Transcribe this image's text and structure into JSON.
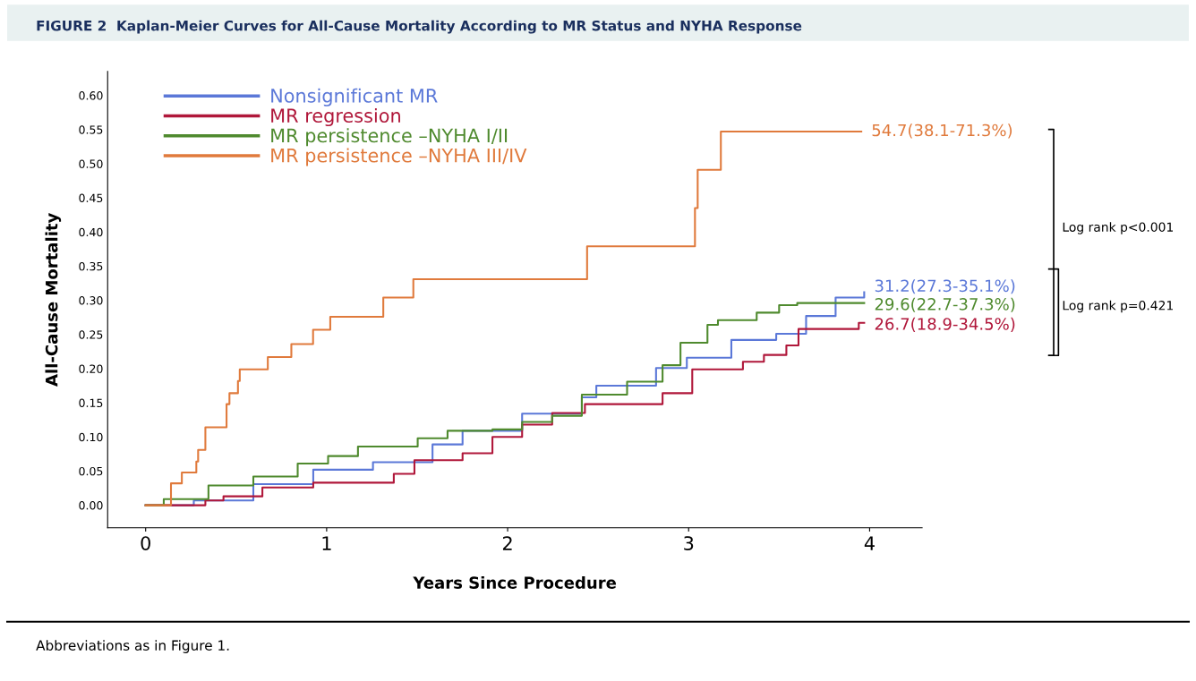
{
  "chart_data": {
    "type": "step",
    "title": "FIGURE 2  Kaplan-Meier Curves for All-Cause Mortality According to MR Status and NYHA Response",
    "xlabel": "Years Since Procedure",
    "ylabel": "All-Cause Mortality",
    "xlim": [
      -0.21,
      4.29
    ],
    "xticks": [
      0,
      1,
      2,
      3,
      4
    ],
    "ylim": [
      -0.033,
      0.635
    ],
    "yticks": [
      {
        "value": 0,
        "label": "0.00"
      },
      {
        "value": 0.05,
        "label": "0.05"
      },
      {
        "value": 0.1,
        "label": "0.10"
      },
      {
        "value": 0.15,
        "label": "0.15"
      },
      {
        "value": 0.2,
        "label": "0.20"
      },
      {
        "value": 0.25,
        "label": "0.25"
      },
      {
        "value": 0.3,
        "label": "0.30"
      },
      {
        "value": 0.35,
        "label": "0.35"
      },
      {
        "value": 0.4,
        "label": "0.40"
      },
      {
        "value": 0.45,
        "label": "0.45"
      },
      {
        "value": 0.5,
        "label": "0.50"
      },
      {
        "value": 0.55,
        "label": "0.55"
      },
      {
        "value": 0.6,
        "label": "0.60"
      }
    ],
    "grid": false,
    "legend": "top left",
    "marker": "none",
    "line_style": "solid",
    "series": [
      {
        "name": "Nonsignificant MR",
        "color": "#5b78d8",
        "x": [
          0,
          0.266,
          0.595,
          0.926,
          1.256,
          1.585,
          1.751,
          2.08,
          2.41,
          2.49,
          2.82,
          2.99,
          3.236,
          3.484,
          3.649,
          3.812,
          3.97
        ],
        "values": [
          0,
          0.007,
          0.031,
          0.052,
          0.063,
          0.089,
          0.109,
          0.134,
          0.158,
          0.175,
          0.201,
          0.216,
          0.242,
          0.251,
          0.277,
          0.304,
          0.312
        ]
      },
      {
        "name": "MR regression",
        "color": "#b0173a",
        "x": [
          0,
          0.33,
          0.43,
          0.645,
          0.926,
          1.371,
          1.485,
          1.751,
          1.916,
          2.08,
          2.246,
          2.427,
          2.856,
          3.02,
          3.3,
          3.416,
          3.54,
          3.607,
          3.94,
          3.97
        ],
        "values": [
          0,
          0.007,
          0.013,
          0.026,
          0.033,
          0.046,
          0.066,
          0.076,
          0.1,
          0.118,
          0.135,
          0.148,
          0.164,
          0.199,
          0.21,
          0.22,
          0.234,
          0.258,
          0.267,
          0.267
        ]
      },
      {
        "name": "MR persistence –NYHA I/II",
        "color": "#4f8a2e",
        "x": [
          0,
          0.1,
          0.347,
          0.595,
          0.84,
          1.008,
          1.173,
          1.503,
          1.668,
          1.916,
          2.08,
          2.246,
          2.41,
          2.66,
          2.856,
          2.955,
          3.104,
          3.162,
          3.376,
          3.5,
          3.6,
          3.97
        ],
        "values": [
          0,
          0.009,
          0.029,
          0.042,
          0.061,
          0.072,
          0.086,
          0.098,
          0.109,
          0.111,
          0.122,
          0.131,
          0.162,
          0.181,
          0.205,
          0.238,
          0.264,
          0.271,
          0.282,
          0.293,
          0.296,
          0.296
        ]
      },
      {
        "name": "MR persistence –NYHA III/IV",
        "color": "#e07a3c",
        "x": [
          0,
          0.14,
          0.2,
          0.28,
          0.29,
          0.33,
          0.447,
          0.463,
          0.51,
          0.52,
          0.675,
          0.805,
          0.925,
          1.02,
          1.313,
          1.479,
          2.439,
          3.035,
          3.05,
          3.178,
          3.954
        ],
        "values": [
          0,
          0.032,
          0.048,
          0.064,
          0.081,
          0.114,
          0.148,
          0.164,
          0.182,
          0.199,
          0.217,
          0.236,
          0.257,
          0.276,
          0.304,
          0.331,
          0.379,
          0.435,
          0.491,
          0.547,
          0.547
        ]
      }
    ],
    "annotations": [
      "31.2(27.3-35.1%)",
      "26.7(18.9-34.5%)",
      "29.6(22.7-37.3%)",
      "54.7(38.1-71.3%)",
      "Log rank p<0.001",
      "Log rank p=0.421",
      "Abbreviations as in Figure 1."
    ]
  }
}
